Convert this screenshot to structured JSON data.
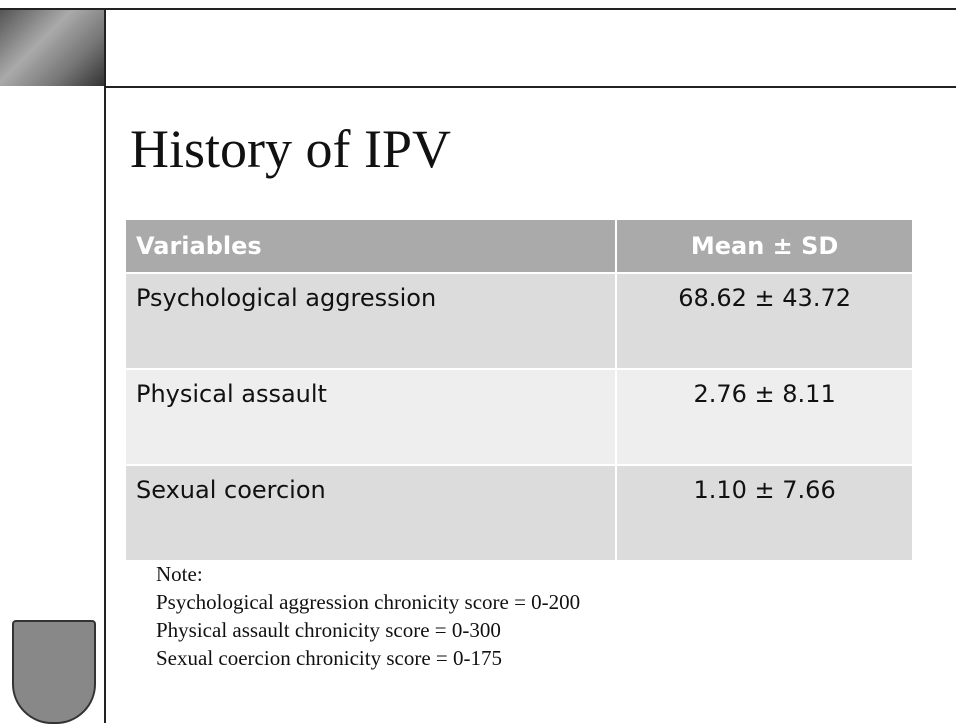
{
  "title": "History of IPV",
  "table": {
    "header": [
      "Variables",
      "Mean ± SD"
    ],
    "rows": [
      [
        "Psychological aggression",
        "68.62 ± 43.72"
      ],
      [
        "Physical assault",
        "2.76 ± 8.11"
      ],
      [
        "Sexual coercion",
        "1.10 ± 7.66"
      ]
    ]
  },
  "note": {
    "heading": "Note:",
    "lines": [
      "Psychological aggression chronicity score = 0-200",
      "Physical assault chronicity score = 0-300",
      "Sexual coercion chronicity score = 0-175"
    ]
  }
}
